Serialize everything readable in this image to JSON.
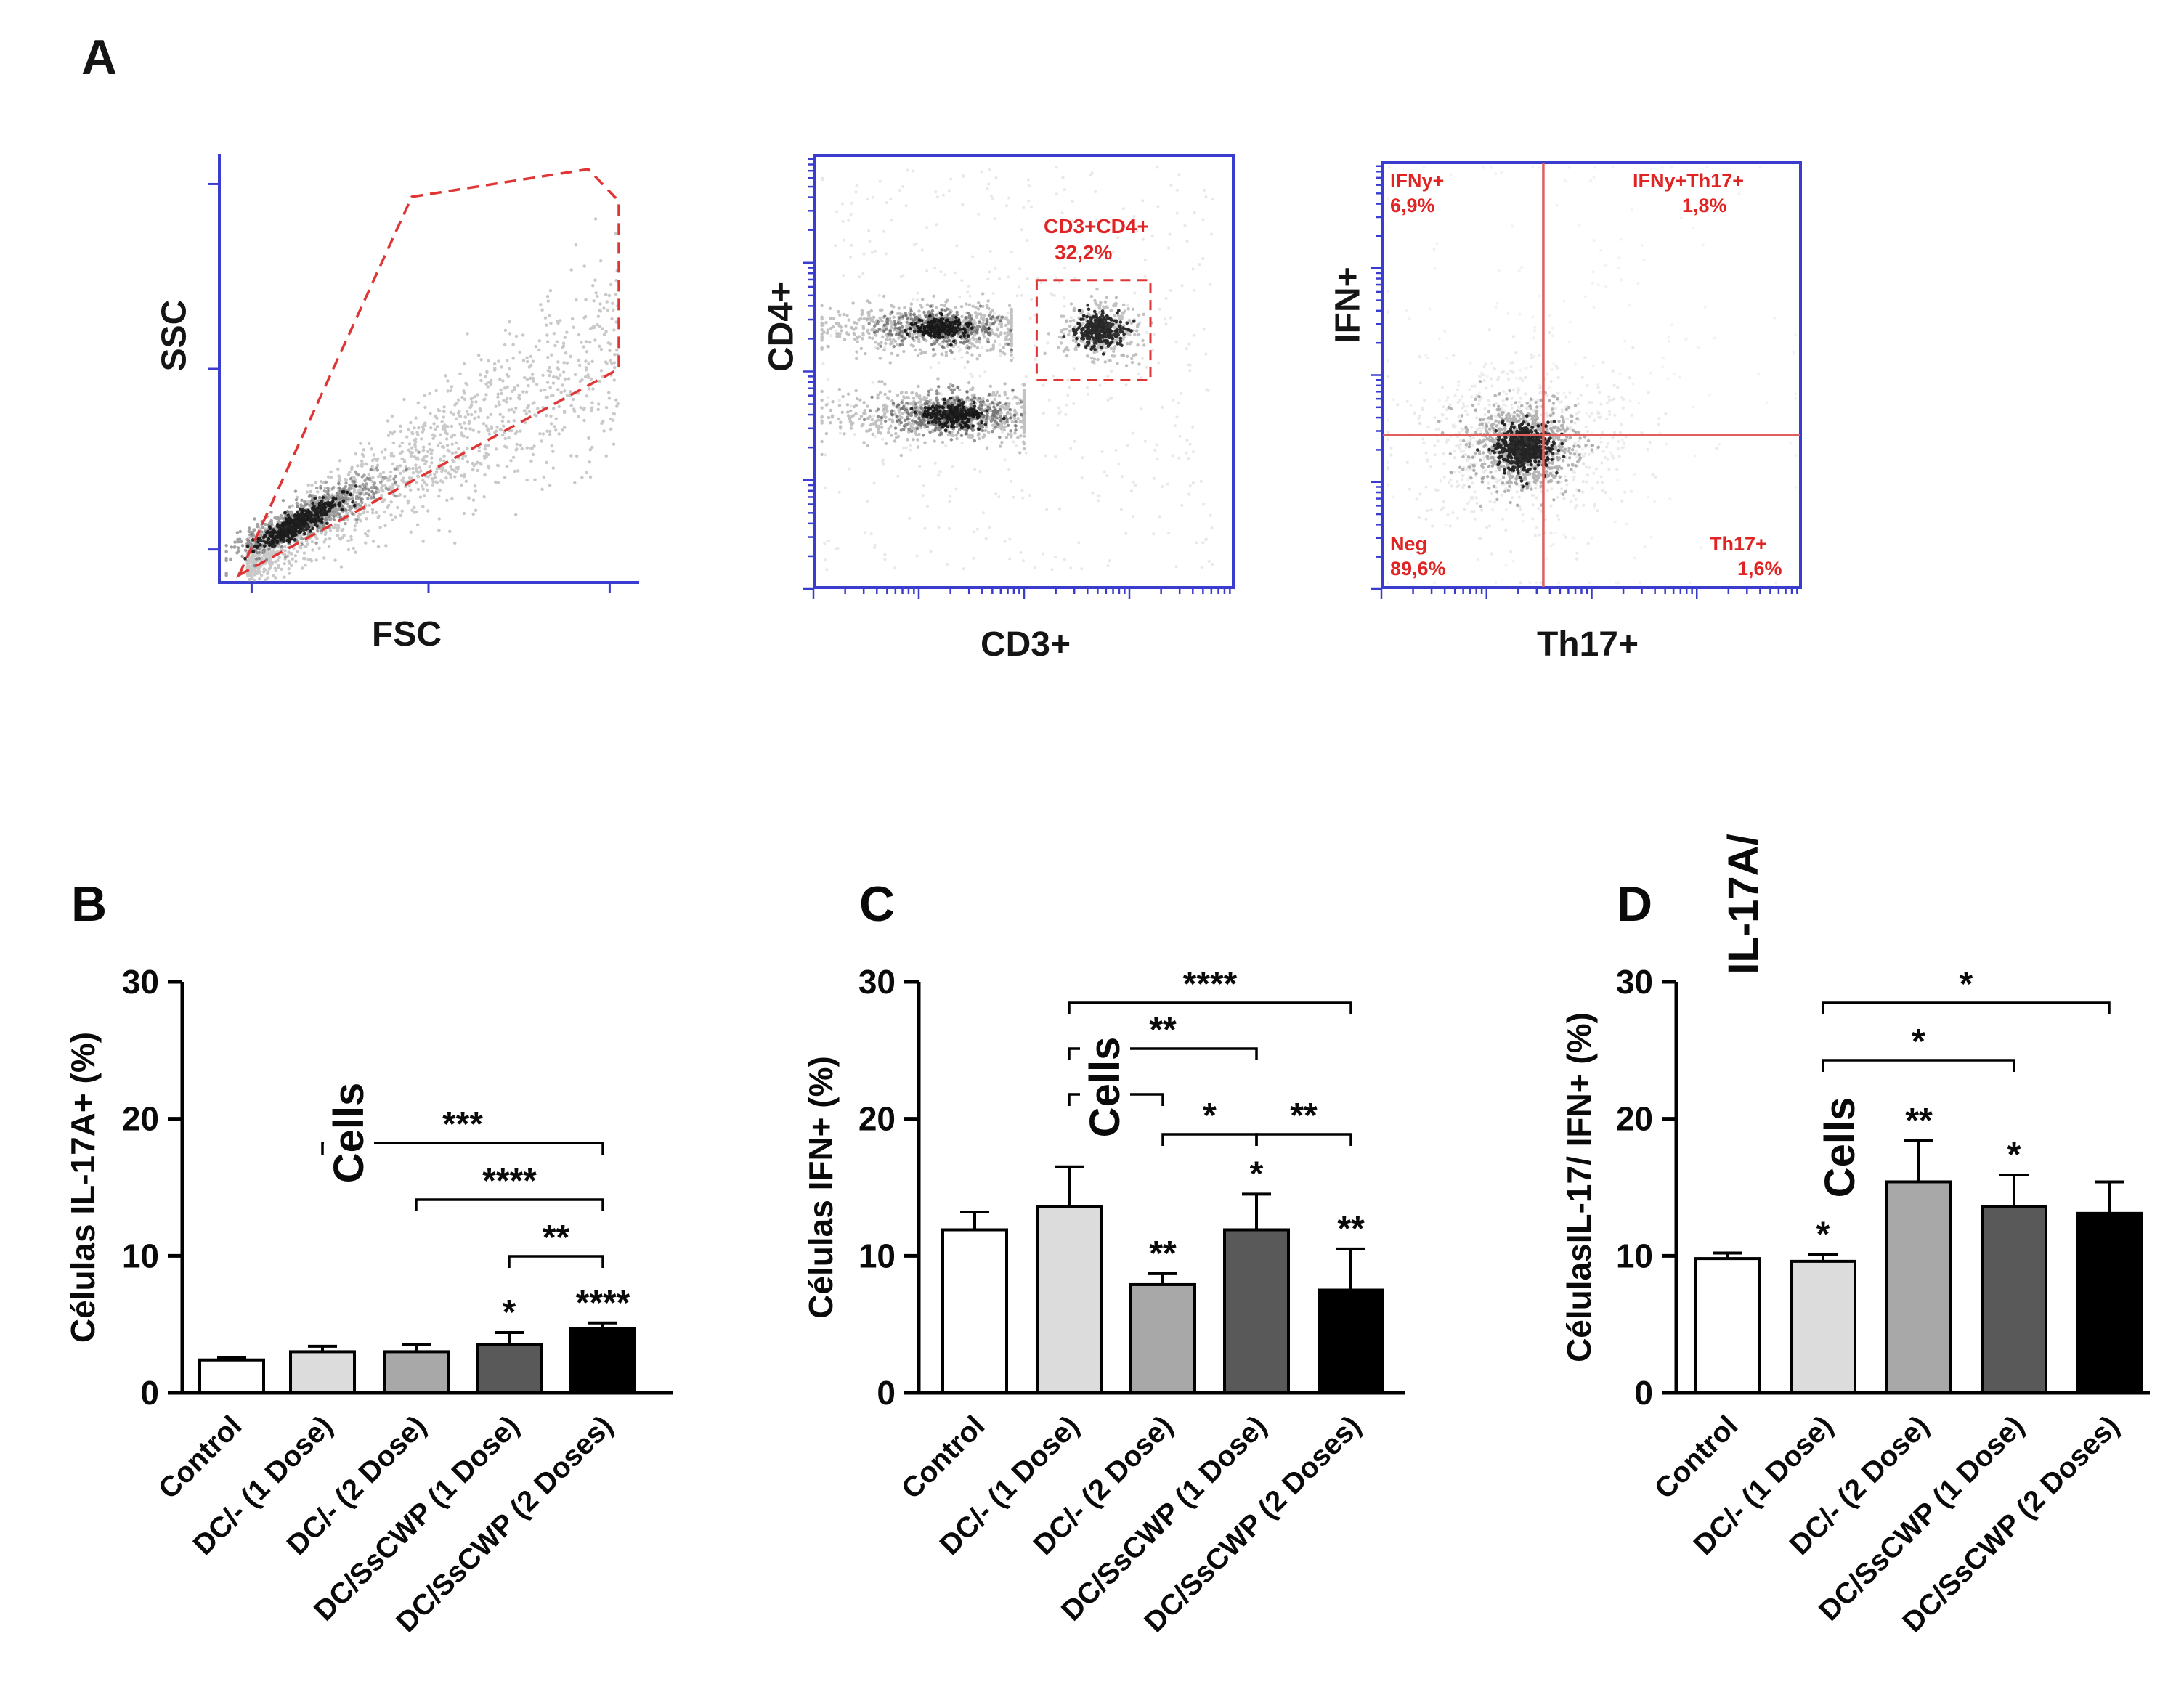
{
  "figure": {
    "panel_a": {
      "label": "A",
      "plot1": {
        "name": "ssc-vs-fsc",
        "xlabel": "FSC",
        "ylabel": "SSC"
      },
      "plot2": {
        "name": "cd4-vs-cd3",
        "xlabel": "CD3+",
        "ylabel": "CD4+",
        "gate_label": "CD3+CD4+",
        "gate_value": "32,2%"
      },
      "plot3": {
        "name": "ifn-vs-th17",
        "xlabel": "Th17+",
        "ylabel": "IFN+",
        "q_tl_label": "IFNy+",
        "q_tl_value": "6,9%",
        "q_tr_label": "IFNy+Th17+",
        "q_tr_value": "1,8%",
        "q_bl_label": "Neg",
        "q_bl_value": "89,6%",
        "q_br_label": "Th17+",
        "q_br_value": "1,6%"
      }
    },
    "colors": {
      "flow_axis_blue": "#3a3ccf",
      "gate_red": "#e03535",
      "cross_red": "#e06060",
      "label_red": "#e02424"
    }
  },
  "chart_data": [
    {
      "type": "bar",
      "panel": "B",
      "ylabel": "Células IL-17A+ (%)",
      "overlay": [
        "Cells"
      ],
      "categories": [
        "Control",
        "DC/- (1 Dose)",
        "DC/- (2 Dose)",
        "DC/SsCWP (1 Dose)",
        "DC/SsCWP (2 Doses)"
      ],
      "values": [
        2.4,
        3.0,
        3.0,
        3.5,
        4.7
      ],
      "errors": [
        0.2,
        0.4,
        0.5,
        0.9,
        0.4
      ],
      "bar_sig": [
        "",
        "",
        "",
        "*",
        "****"
      ],
      "brackets": [
        {
          "from": 1,
          "to": 4,
          "label": "***"
        },
        {
          "from": 2,
          "to": 4,
          "label": "****"
        },
        {
          "from": 3,
          "to": 4,
          "label": "**"
        }
      ],
      "ylim": [
        0,
        30
      ],
      "yticks": [
        0,
        10,
        20,
        30
      ],
      "grid": false,
      "bar_colors": [
        "#ffffff",
        "#dcdcdc",
        "#a8a8a8",
        "#595959",
        "#000000"
      ]
    },
    {
      "type": "bar",
      "panel": "C",
      "ylabel": "Células IFN+ (%)",
      "overlay": [
        "Cells"
      ],
      "categories": [
        "Control",
        "DC/- (1 Dose)",
        "DC/- (2 Dose)",
        "DC/SsCWP (1 Dose)",
        "DC/SsCWP (2 Doses)"
      ],
      "values": [
        11.9,
        13.6,
        7.9,
        11.9,
        7.5
      ],
      "errors": [
        1.3,
        2.9,
        0.8,
        2.6,
        3.0
      ],
      "bar_sig": [
        "",
        "",
        "**",
        "*",
        "**"
      ],
      "brackets": [
        {
          "from": 1,
          "to": 4,
          "label": "****"
        },
        {
          "from": 1,
          "to": 3,
          "label": "**"
        },
        {
          "from": 1,
          "to": 2,
          "label": "*"
        },
        {
          "from": 2,
          "to": 3,
          "label": "*"
        },
        {
          "from": 3,
          "to": 4,
          "label": "**"
        }
      ],
      "ylim": [
        0,
        30
      ],
      "yticks": [
        0,
        10,
        20,
        30
      ],
      "grid": false,
      "bar_colors": [
        "#ffffff",
        "#dcdcdc",
        "#a8a8a8",
        "#595959",
        "#000000"
      ]
    },
    {
      "type": "bar",
      "panel": "D",
      "ylabel": "CélulasIL-17/ IFN+ (%)",
      "overlay": [
        "IL-17A/",
        "Cells"
      ],
      "categories": [
        "Control",
        "DC/- (1 Dose)",
        "DC/- (2 Dose)",
        "DC/SsCWP (1 Dose)",
        "DC/SsCWP (2 Doses)"
      ],
      "values": [
        9.8,
        9.6,
        15.4,
        13.6,
        13.1
      ],
      "errors": [
        0.4,
        0.5,
        3.0,
        2.3,
        2.3
      ],
      "bar_sig": [
        "",
        "*",
        "**",
        "*",
        ""
      ],
      "brackets": [
        {
          "from": 1,
          "to": 4,
          "label": "*"
        },
        {
          "from": 1,
          "to": 3,
          "label": "*"
        }
      ],
      "ylim": [
        0,
        30
      ],
      "yticks": [
        0,
        10,
        20,
        30
      ],
      "grid": false,
      "bar_colors": [
        "#ffffff",
        "#dcdcdc",
        "#a8a8a8",
        "#595959",
        "#000000"
      ]
    }
  ]
}
